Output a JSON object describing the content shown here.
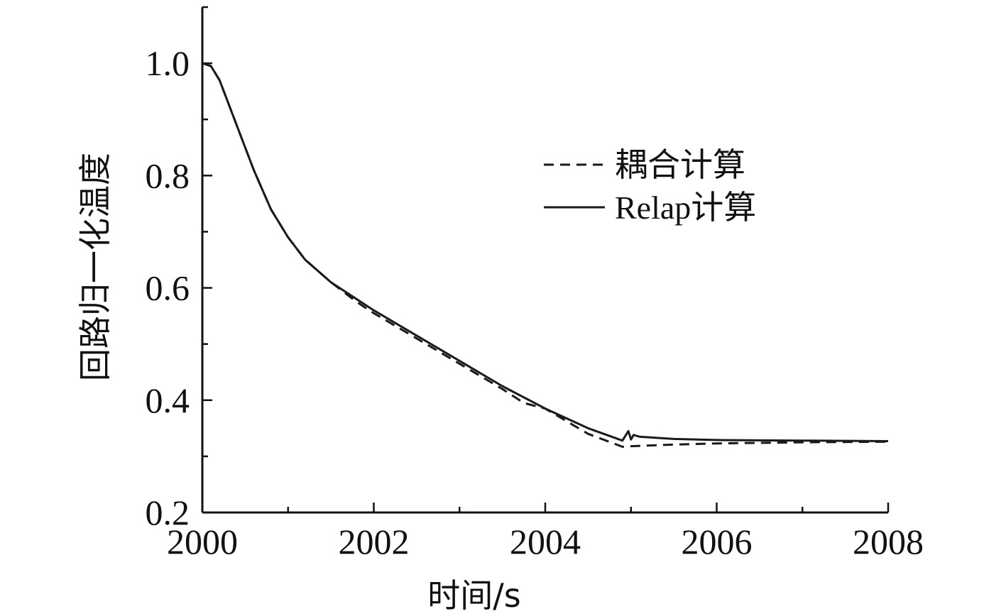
{
  "chart_data": {
    "type": "line",
    "title": "",
    "xlabel": "时间/s",
    "ylabel": "回路归一化温度",
    "xlim": [
      2000,
      2008
    ],
    "ylim": [
      0.2,
      1.1
    ],
    "xticks": [
      2000,
      2002,
      2004,
      2006,
      2008
    ],
    "xtick_labels": [
      "2000",
      "2002",
      "2004",
      "2006",
      "2008"
    ],
    "yticks": [
      0.2,
      0.4,
      0.6,
      0.8,
      1.0
    ],
    "ytick_labels": [
      "0.2",
      "0.4",
      "0.6",
      "0.8",
      "1.0"
    ],
    "grid": false,
    "legend_position": "upper-right",
    "series": [
      {
        "name": "耦合计算",
        "style": "dashed",
        "color": "#1a1a1a",
        "x": [
          2000,
          2000.1,
          2000.2,
          2000.4,
          2000.6,
          2000.8,
          2001.0,
          2001.2,
          2001.5,
          2001.8,
          2002.0,
          2002.5,
          2003.0,
          2003.5,
          2003.75,
          2004.0,
          2004.5,
          2004.9,
          2005.0,
          2005.5,
          2006.0,
          2007.0,
          2008.0
        ],
        "y": [
          1.0,
          0.995,
          0.97,
          0.89,
          0.81,
          0.74,
          0.69,
          0.65,
          0.61,
          0.575,
          0.555,
          0.51,
          0.465,
          0.42,
          0.395,
          0.385,
          0.34,
          0.317,
          0.318,
          0.321,
          0.323,
          0.325,
          0.326
        ]
      },
      {
        "name": "Relap计算",
        "style": "solid",
        "color": "#1a1a1a",
        "x": [
          2000,
          2000.1,
          2000.2,
          2000.4,
          2000.6,
          2000.8,
          2001.0,
          2001.2,
          2001.5,
          2001.8,
          2002.0,
          2002.5,
          2003.0,
          2003.5,
          2004.0,
          2004.5,
          2004.9,
          2004.97,
          2005.0,
          2005.03,
          2005.1,
          2005.5,
          2006.0,
          2007.0,
          2008.0
        ],
        "y": [
          1.0,
          0.995,
          0.97,
          0.89,
          0.81,
          0.74,
          0.69,
          0.65,
          0.61,
          0.58,
          0.56,
          0.515,
          0.47,
          0.425,
          0.385,
          0.35,
          0.328,
          0.345,
          0.33,
          0.338,
          0.335,
          0.331,
          0.329,
          0.328,
          0.327
        ]
      }
    ]
  }
}
